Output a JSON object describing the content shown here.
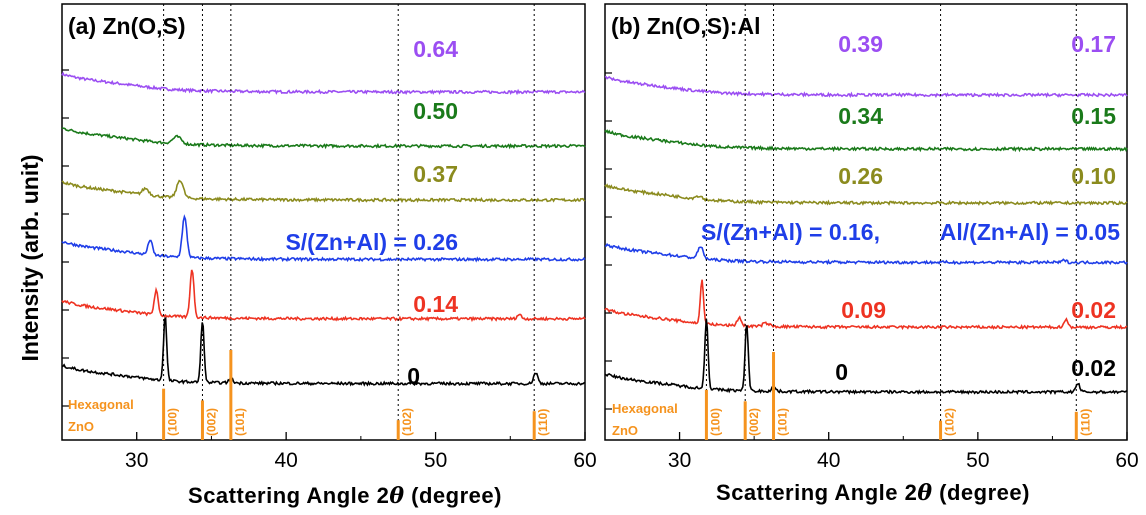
{
  "figure": {
    "ylabel": "Intensity (arb. unit)",
    "xlabel_prefix": "Scattering Angle 2",
    "xlabel_symbol": "θ",
    "xlabel_suffix": " (degree)"
  },
  "colors": {
    "purple": "#9b4ef2",
    "green": "#1a7a1a",
    "olive": "#8b8b1e",
    "blue": "#1f3ee8",
    "red": "#ee3322",
    "black": "#000000",
    "reference": "#f5931e"
  },
  "chart_data": [
    {
      "type": "line",
      "title": "(a) Zn(O,S)",
      "xlim": [
        25,
        60
      ],
      "xticks": [
        30,
        40,
        50,
        60
      ],
      "y_scale": "offset stacked, arbitrary units",
      "vertical_dotted_lines": [
        31.8,
        34.4,
        36.3,
        47.5,
        56.6
      ],
      "reference": {
        "label_line1": "Hexagonal",
        "label_line2": "ZnO",
        "peaks": [
          {
            "x": 31.8,
            "label": "(100)",
            "intensity": 0.57
          },
          {
            "x": 34.4,
            "label": "(002)",
            "intensity": 0.44
          },
          {
            "x": 36.3,
            "label": "(101)",
            "intensity": 1.0
          },
          {
            "x": 47.5,
            "label": "(102)",
            "intensity": 0.22
          },
          {
            "x": 56.6,
            "label": "(110)",
            "intensity": 0.32
          }
        ]
      },
      "series": [
        {
          "label": "0.64",
          "color": "#9b4ef2",
          "offset": 6.0,
          "peaks": []
        },
        {
          "label": "0.50",
          "color": "#1a7a1a",
          "offset": 5.0,
          "peaks": [
            {
              "x": 32.7,
              "h": 0.13,
              "w": 0.4
            }
          ]
        },
        {
          "label": "0.37",
          "color": "#8b8b1e",
          "offset": 4.0,
          "peaks": [
            {
              "x": 30.6,
              "h": 0.12,
              "w": 0.3
            },
            {
              "x": 32.9,
              "h": 0.33,
              "w": 0.3
            }
          ]
        },
        {
          "label": "S/(Zn+Al) = 0.26",
          "color": "#1f3ee8",
          "offset": 2.9,
          "peaks": [
            {
              "x": 30.9,
              "h": 0.28,
              "w": 0.2
            },
            {
              "x": 33.2,
              "h": 0.75,
              "w": 0.22
            }
          ]
        },
        {
          "label": "0.14",
          "color": "#ee3322",
          "offset": 1.8,
          "peaks": [
            {
              "x": 31.3,
              "h": 0.45,
              "w": 0.18
            },
            {
              "x": 33.7,
              "h": 0.9,
              "w": 0.18
            },
            {
              "x": 55.6,
              "h": 0.08,
              "w": 0.2
            }
          ]
        },
        {
          "label": "0",
          "color": "#000000",
          "offset": 0.6,
          "peaks": [
            {
              "x": 31.9,
              "h": 1.2,
              "w": 0.15
            },
            {
              "x": 34.4,
              "h": 1.15,
              "w": 0.15
            },
            {
              "x": 36.3,
              "h": 0.08,
              "w": 0.2
            },
            {
              "x": 56.7,
              "h": 0.2,
              "w": 0.2
            }
          ]
        }
      ]
    },
    {
      "type": "line",
      "title": "(b) Zn(O,S):Al",
      "xlim": [
        25,
        60
      ],
      "xticks": [
        30,
        40,
        50,
        60
      ],
      "y_scale": "offset stacked, arbitrary units",
      "vertical_dotted_lines": [
        31.8,
        34.4,
        36.3,
        47.5,
        56.6
      ],
      "reference": {
        "label_line1": "Hexagonal",
        "label_line2": "ZnO",
        "peaks": [
          {
            "x": 31.8,
            "label": "(100)",
            "intensity": 0.57
          },
          {
            "x": 34.4,
            "label": "(002)",
            "intensity": 0.44
          },
          {
            "x": 36.3,
            "label": "(101)",
            "intensity": 1.0
          },
          {
            "x": 47.5,
            "label": "(102)",
            "intensity": 0.22
          },
          {
            "x": 56.6,
            "label": "(110)",
            "intensity": 0.32
          }
        ]
      },
      "series": [
        {
          "label_s": "0.39",
          "label_al": "0.17",
          "color": "#9b4ef2",
          "offset": 6.0,
          "peaks": []
        },
        {
          "label_s": "0.34",
          "label_al": "0.15",
          "color": "#1a7a1a",
          "offset": 5.0,
          "peaks": []
        },
        {
          "label_s": "0.26",
          "label_al": "0.10",
          "color": "#8b8b1e",
          "offset": 4.0,
          "peaks": [
            {
              "x": 31.3,
              "h": 0.06,
              "w": 0.3
            }
          ]
        },
        {
          "label_s": "S/(Zn+Al) = 0.16,",
          "label_al": "Al/(Zn+Al) = 0.05",
          "color": "#1f3ee8",
          "offset": 2.9,
          "peaks": [
            {
              "x": 31.4,
              "h": 0.22,
              "w": 0.25
            },
            {
              "x": 55.8,
              "h": 0.04,
              "w": 0.2
            }
          ]
        },
        {
          "label_s": "0.09",
          "label_al": "0.02",
          "color": "#ee3322",
          "offset": 1.7,
          "peaks": [
            {
              "x": 31.5,
              "h": 0.8,
              "w": 0.15
            },
            {
              "x": 34.0,
              "h": 0.15,
              "w": 0.2
            },
            {
              "x": 35.8,
              "h": 0.06,
              "w": 0.3
            },
            {
              "x": 55.9,
              "h": 0.14,
              "w": 0.2
            }
          ]
        },
        {
          "label_s": "0",
          "label_al": "0.02",
          "color": "#000000",
          "offset": 0.5,
          "peaks": [
            {
              "x": 31.8,
              "h": 1.3,
              "w": 0.15
            },
            {
              "x": 34.5,
              "h": 1.25,
              "w": 0.15
            },
            {
              "x": 36.3,
              "h": 0.08,
              "w": 0.2
            },
            {
              "x": 56.7,
              "h": 0.15,
              "w": 0.2
            }
          ]
        }
      ]
    }
  ]
}
